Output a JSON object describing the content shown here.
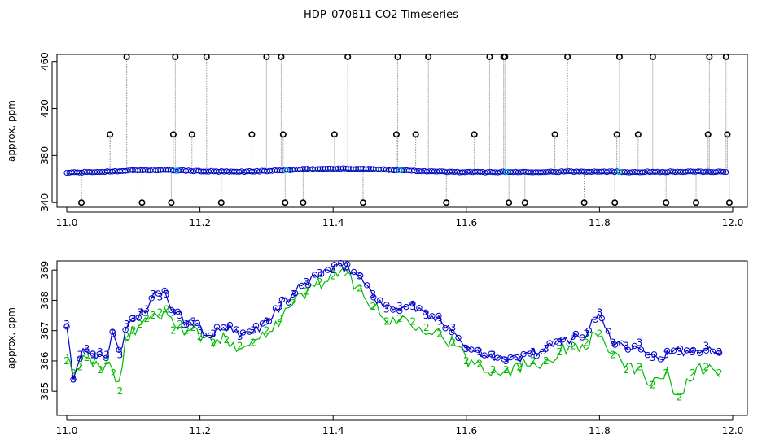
{
  "title": "HDP_070811  CO2 Timeseries",
  "colors": {
    "series3": "#0000cc",
    "series2": "#00bb00",
    "outlier": "#000000",
    "drop": "#888888",
    "cyan": "#00d0d0"
  },
  "chart_data": [
    {
      "type": "scatter",
      "ylabel": "approx. ppm",
      "xlim": [
        11.0,
        12.0
      ],
      "ylim": [
        336,
        466
      ],
      "xticks": [
        "11.0",
        "11.2",
        "11.4",
        "11.6",
        "11.8",
        "12.0"
      ],
      "yticks": [
        "340",
        "380",
        "420",
        "460"
      ],
      "baseline": {
        "x": [
          11.0,
          11.05,
          11.1,
          11.15,
          11.2,
          11.25,
          11.3,
          11.35,
          11.4,
          11.45,
          11.5,
          11.55,
          11.6,
          11.65,
          11.7,
          11.75,
          11.8,
          11.85,
          11.9,
          11.95,
          11.99
        ],
        "y": [
          365.5,
          366.1,
          367.5,
          367.6,
          366.7,
          366.2,
          366.8,
          368.2,
          368.9,
          368.6,
          367.6,
          366.5,
          365.9,
          366.0,
          366.1,
          366.3,
          366.5,
          366.0,
          366.2,
          366.2,
          366.2
        ]
      },
      "outliers_high": [
        11.065,
        11.09,
        11.16,
        11.163,
        11.188,
        11.21,
        11.278,
        11.3,
        11.322,
        11.325,
        11.402,
        11.422,
        11.495,
        11.497,
        11.524,
        11.543,
        11.612,
        11.635,
        11.656,
        11.658,
        11.733,
        11.752,
        11.826,
        11.83,
        11.858,
        11.88,
        11.963,
        11.965,
        11.99,
        11.992
      ],
      "outliers_high_y": [
        398,
        464,
        398,
        464,
        398,
        464,
        398,
        464,
        464,
        398,
        398,
        464,
        398,
        464,
        398,
        464,
        398,
        464,
        464,
        464,
        398,
        464,
        398,
        464,
        398,
        464,
        398,
        464,
        464,
        398
      ],
      "outliers_low": [
        11.022,
        11.113,
        11.157,
        11.232,
        11.328,
        11.355,
        11.445,
        11.57,
        11.664,
        11.688,
        11.777,
        11.823,
        11.9,
        11.945,
        11.995
      ]
    },
    {
      "type": "line",
      "ylabel": "approx. ppm",
      "xlim": [
        11.0,
        12.0
      ],
      "ylim": [
        364.2,
        369.3
      ],
      "xticks": [
        "11.0",
        "11.2",
        "11.4",
        "11.6",
        "11.8",
        "12.0"
      ],
      "yticks": [
        "365",
        "366",
        "367",
        "368",
        "369"
      ],
      "series": [
        {
          "name": "3",
          "x": [
            11.0,
            11.01,
            11.02,
            11.03,
            11.04,
            11.05,
            11.06,
            11.07,
            11.08,
            11.09,
            11.1,
            11.11,
            11.12,
            11.13,
            11.14,
            11.15,
            11.16,
            11.17,
            11.18,
            11.19,
            11.2,
            11.22,
            11.24,
            11.26,
            11.28,
            11.3,
            11.32,
            11.34,
            11.36,
            11.38,
            11.4,
            11.42,
            11.44,
            11.46,
            11.48,
            11.5,
            11.52,
            11.54,
            11.56,
            11.58,
            11.6,
            11.62,
            11.64,
            11.66,
            11.68,
            11.7,
            11.72,
            11.74,
            11.76,
            11.78,
            11.8,
            11.82,
            11.84,
            11.86,
            11.88,
            11.9,
            11.92,
            11.94,
            11.96,
            11.98
          ],
          "y": [
            367.2,
            365.4,
            366.2,
            366.4,
            366.2,
            366.3,
            366.2,
            366.9,
            366.2,
            367.2,
            367.4,
            367.6,
            367.7,
            368.2,
            368.1,
            368.2,
            367.6,
            367.5,
            367.2,
            367.3,
            367.0,
            366.9,
            367.1,
            366.8,
            367.0,
            367.3,
            367.8,
            368.2,
            368.6,
            368.9,
            369.0,
            369.1,
            368.8,
            368.2,
            367.7,
            367.8,
            367.8,
            367.5,
            367.3,
            367.1,
            366.4,
            366.3,
            366.2,
            366.0,
            366.1,
            366.3,
            366.4,
            366.6,
            366.8,
            366.9,
            367.6,
            366.6,
            366.5,
            366.6,
            366.1,
            366.2,
            366.3,
            366.3,
            366.5,
            366.3
          ]
        },
        {
          "name": "2",
          "x": [
            11.0,
            11.01,
            11.02,
            11.03,
            11.04,
            11.05,
            11.06,
            11.07,
            11.08,
            11.09,
            11.1,
            11.11,
            11.12,
            11.13,
            11.14,
            11.15,
            11.16,
            11.17,
            11.18,
            11.19,
            11.2,
            11.22,
            11.24,
            11.26,
            11.28,
            11.3,
            11.32,
            11.34,
            11.36,
            11.38,
            11.4,
            11.42,
            11.44,
            11.46,
            11.48,
            11.5,
            11.52,
            11.54,
            11.56,
            11.58,
            11.6,
            11.62,
            11.64,
            11.66,
            11.68,
            11.7,
            11.72,
            11.74,
            11.76,
            11.78,
            11.8,
            11.82,
            11.84,
            11.86,
            11.88,
            11.9,
            11.92,
            11.94,
            11.96,
            11.98
          ],
          "y": [
            366.0,
            365.6,
            365.8,
            366.1,
            366.0,
            365.7,
            366.0,
            365.6,
            365.0,
            366.8,
            367.0,
            367.2,
            367.4,
            367.5,
            367.6,
            367.7,
            367.0,
            367.2,
            367.0,
            367.1,
            366.8,
            366.6,
            366.7,
            366.5,
            366.6,
            367.0,
            367.4,
            367.9,
            368.3,
            368.6,
            368.8,
            368.9,
            368.4,
            367.8,
            367.3,
            367.4,
            367.3,
            367.1,
            366.9,
            366.6,
            366.0,
            365.9,
            365.7,
            365.7,
            365.8,
            366.0,
            366.0,
            366.3,
            366.5,
            366.6,
            366.9,
            366.2,
            365.7,
            365.8,
            365.2,
            365.6,
            364.8,
            365.6,
            365.8,
            365.6
          ]
        }
      ]
    }
  ]
}
